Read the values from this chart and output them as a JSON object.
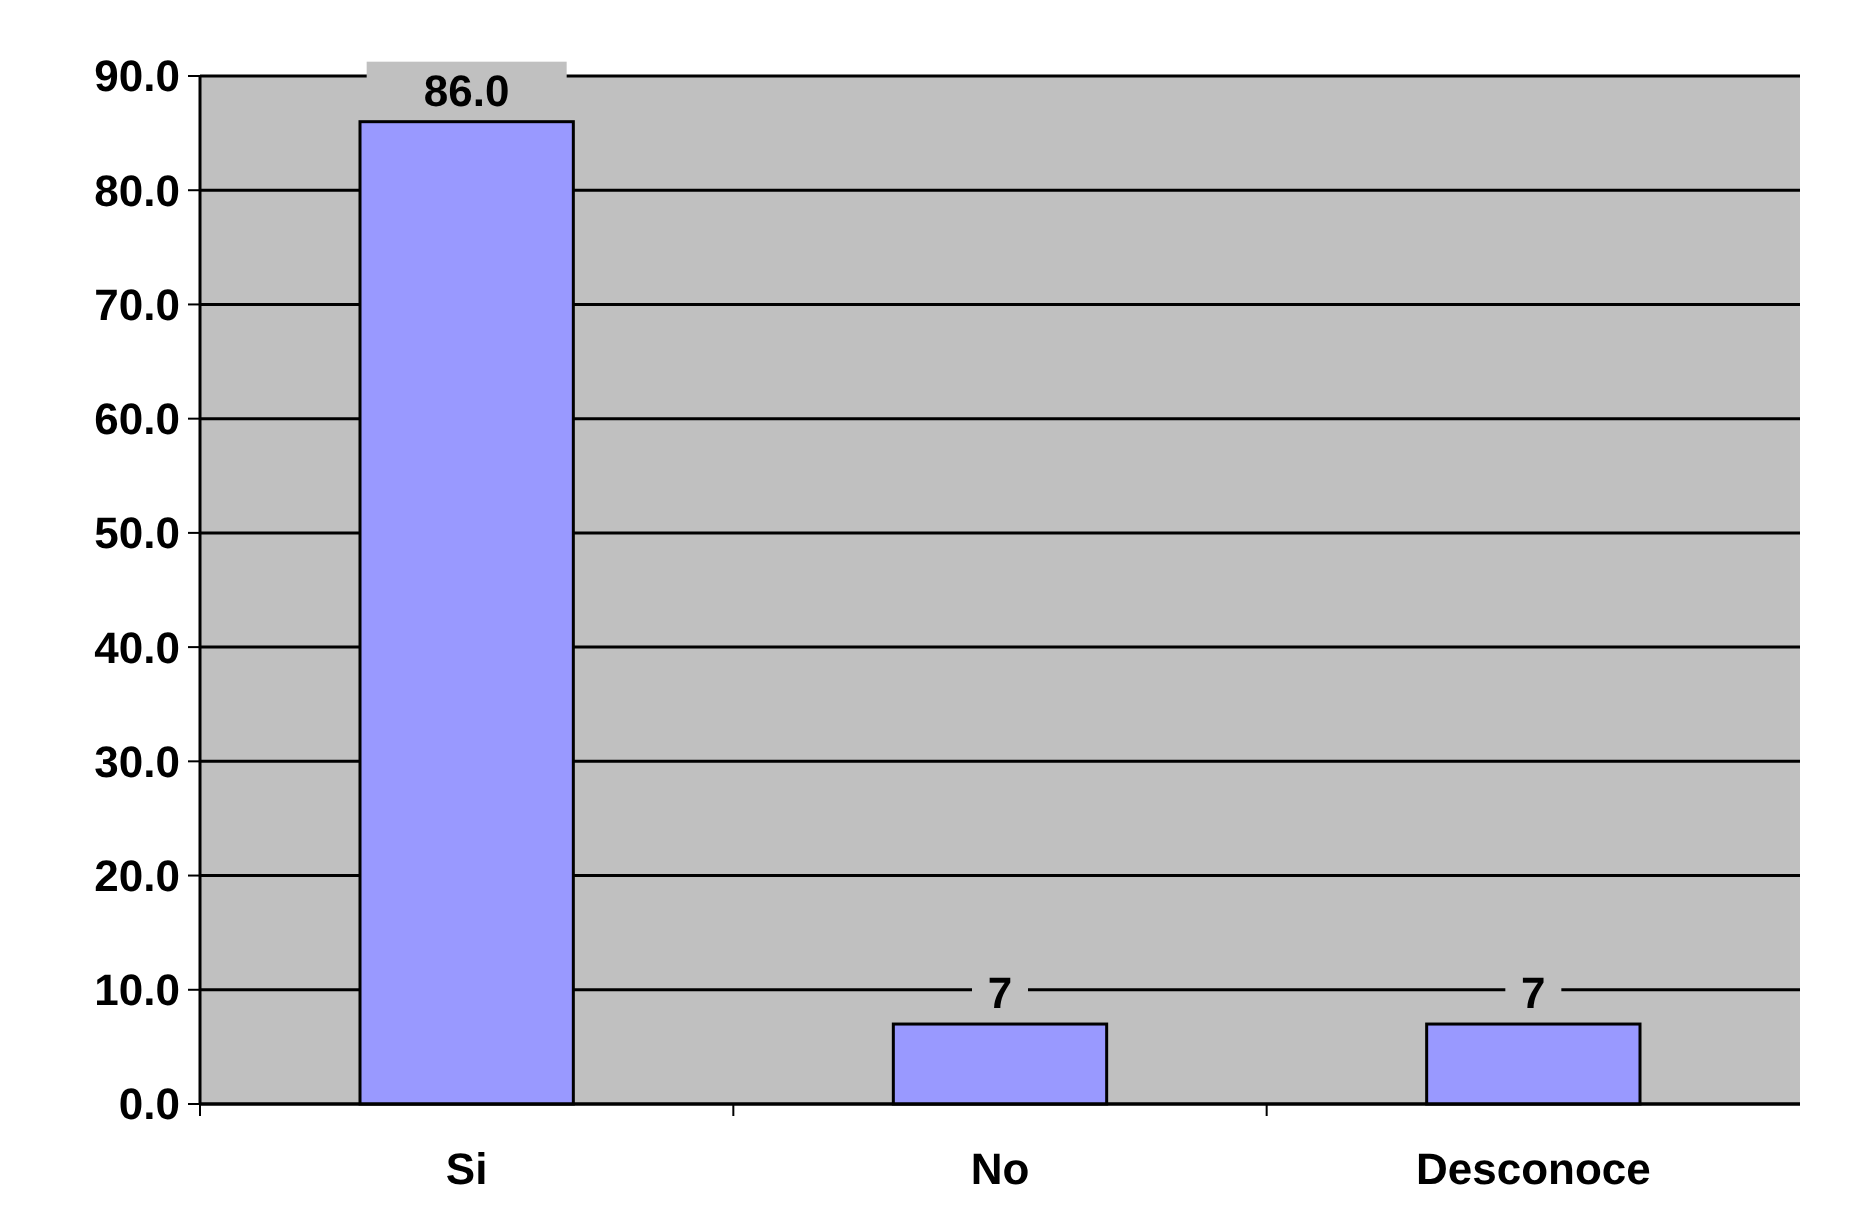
{
  "chart_data": {
    "type": "bar",
    "categories": [
      "Si",
      "No",
      "Desconoce"
    ],
    "values": [
      86.0,
      7,
      7
    ],
    "value_labels": [
      "86.0",
      "7",
      "7"
    ],
    "color": "#9999ff",
    "ylim": [
      0,
      90
    ],
    "yticks": [
      {
        "value": 0,
        "label": "0.0"
      },
      {
        "value": 10,
        "label": "10.0"
      },
      {
        "value": 20,
        "label": "20.0"
      },
      {
        "value": 30,
        "label": "30.0"
      },
      {
        "value": 40,
        "label": "40.0"
      },
      {
        "value": 50,
        "label": "50.0"
      },
      {
        "value": 60,
        "label": "60.0"
      },
      {
        "value": 70,
        "label": "70.0"
      },
      {
        "value": 80,
        "label": "80.0"
      },
      {
        "value": 90,
        "label": "90.0"
      }
    ],
    "grid": "y"
  }
}
